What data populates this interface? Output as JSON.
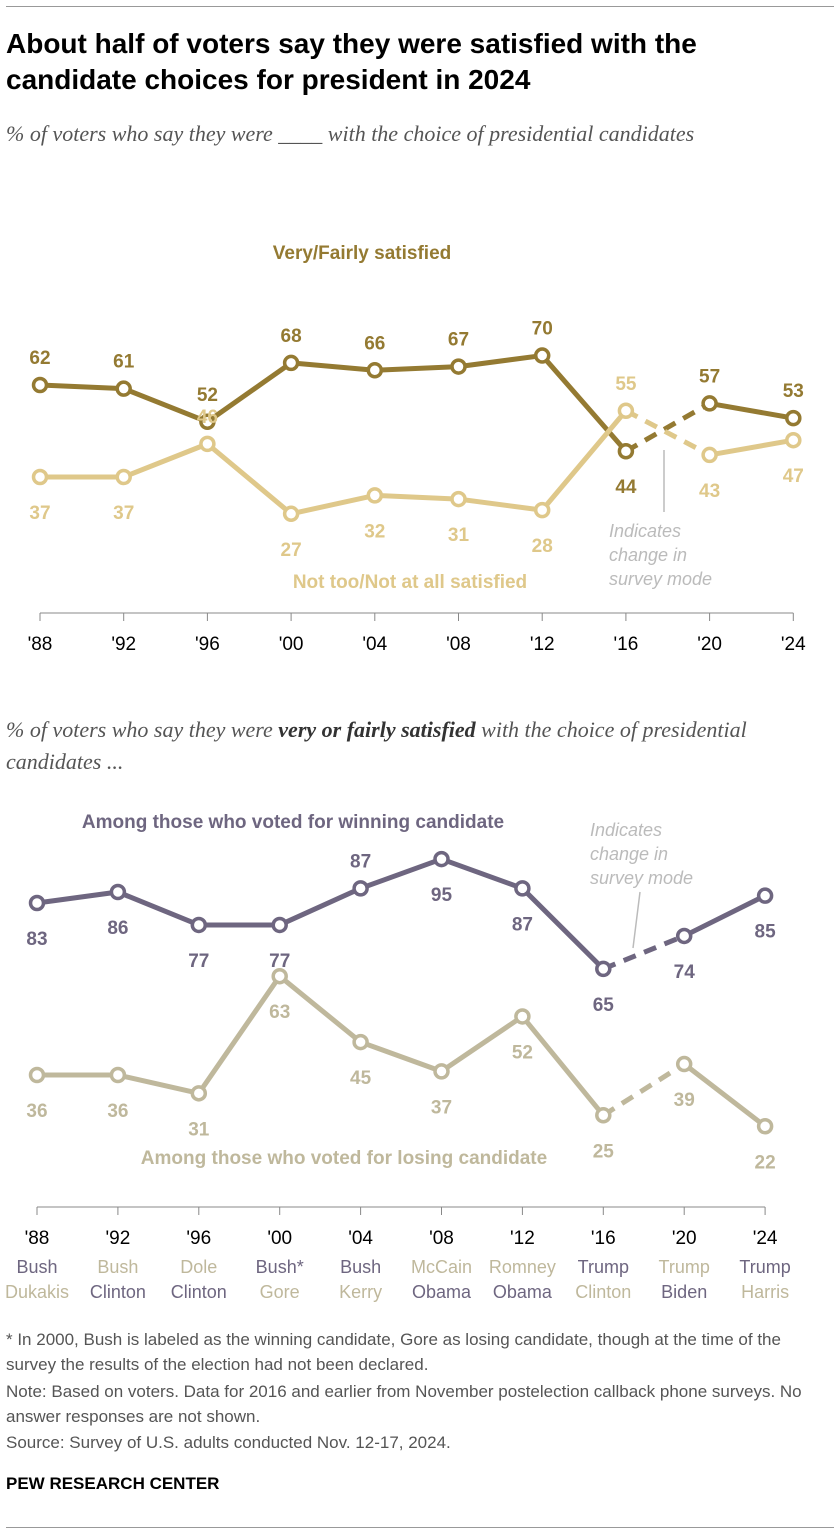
{
  "title": "About half of voters say they were satisfied with the candidate choices for president in 2024",
  "subtitle1": "% of voters who say they were ____ with the choice of presidential candidates",
  "subtitle2_pre": "% of voters who say they were ",
  "subtitle2_bold": "very or fairly satisfied",
  "subtitle2_post": " with the choice of presidential candidates ...",
  "colors": {
    "dark_gold": "#947A32",
    "light_gold": "#DFC88A",
    "winner": "#6E6680",
    "loser": "#BFB89C",
    "annotation": "#BBBBBB"
  },
  "chart_data": [
    {
      "type": "line",
      "categories": [
        "'88",
        "'92",
        "'96",
        "'00",
        "'04",
        "'08",
        "'12",
        "'16",
        "'20",
        "'24"
      ],
      "series": [
        {
          "name": "Very/Fairly satisfied",
          "values": [
            62,
            61,
            52,
            68,
            66,
            67,
            70,
            44,
            57,
            53
          ]
        },
        {
          "name": "Not too/Not at all satisfied",
          "values": [
            37,
            37,
            46,
            27,
            32,
            31,
            28,
            55,
            43,
            47
          ]
        }
      ],
      "annotation": "Indicates change in survey mode",
      "dashed_between": [
        "'16",
        "'20"
      ]
    },
    {
      "type": "line",
      "categories": [
        "'88",
        "'92",
        "'96",
        "'00",
        "'04",
        "'08",
        "'12",
        "'16",
        "'20",
        "'24"
      ],
      "winners": [
        "Bush",
        "Clinton",
        "Clinton",
        "Bush*",
        "Bush",
        "Obama",
        "Obama",
        "Trump",
        "Biden",
        "Trump"
      ],
      "candidates_top": [
        "Bush",
        "Bush",
        "Dole",
        "Bush*",
        "Bush",
        "McCain",
        "Romney",
        "Trump",
        "Trump",
        "Trump"
      ],
      "candidates_bottom": [
        "Dukakis",
        "Clinton",
        "Clinton",
        "Gore",
        "Kerry",
        "Obama",
        "Obama",
        "Clinton",
        "Biden",
        "Harris"
      ],
      "series": [
        {
          "name": "Among those who voted for winning candidate",
          "values": [
            83,
            86,
            77,
            77,
            87,
            95,
            87,
            65,
            74,
            85
          ]
        },
        {
          "name": "Among those who voted for losing candidate",
          "values": [
            36,
            36,
            31,
            63,
            45,
            37,
            52,
            25,
            39,
            22
          ]
        }
      ],
      "annotation": "Indicates change in survey mode",
      "dashed_between": [
        "'16",
        "'20"
      ]
    }
  ],
  "footnotes": [
    "* In 2000, Bush is labeled as the winning candidate, Gore as losing candidate, though at the time of the survey the results of the election had not been declared.",
    "Note: Based on voters. Data for 2016 and earlier from November postelection callback phone surveys. No answer responses are not shown.",
    "Source: Survey of U.S. adults conducted Nov. 12-17, 2024."
  ],
  "source_logo": "PEW RESEARCH CENTER"
}
